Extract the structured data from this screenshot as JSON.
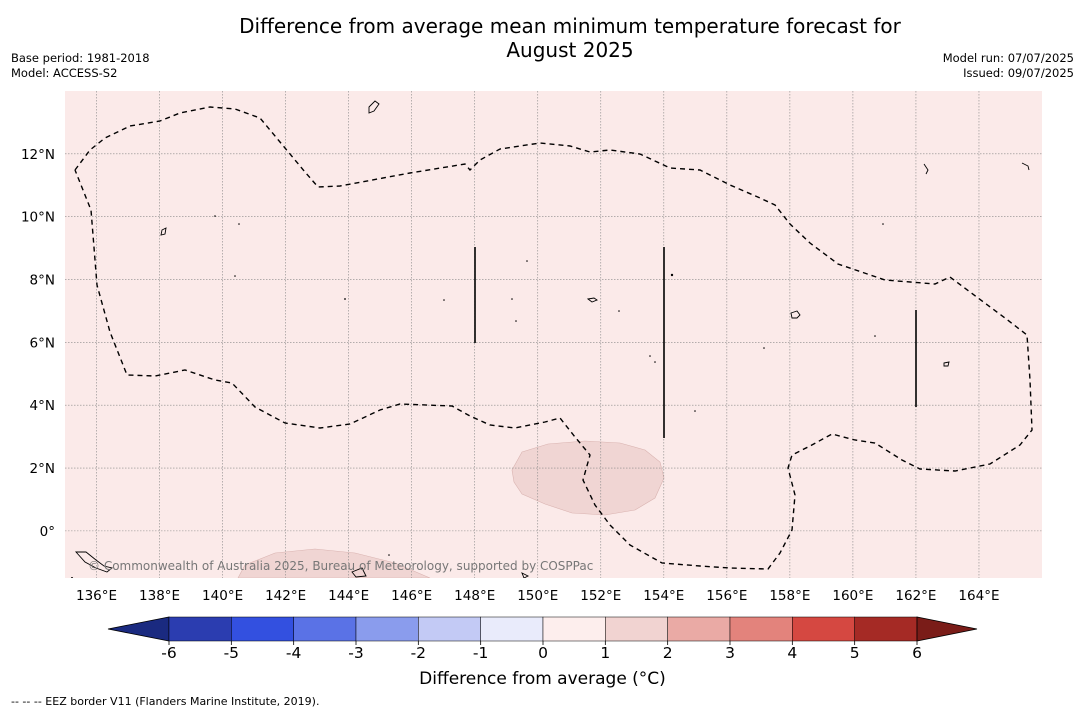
{
  "header": {
    "title_line1": "Difference from average mean minimum temperature forecast for",
    "title_line2": "August 2025",
    "base_period": "Base period: 1981-2018",
    "model": "Model: ACCESS-S2",
    "model_run": "Model run: 07/07/2025",
    "issued": "Issued: 09/07/2025"
  },
  "map": {
    "background_color": "#fbeae9",
    "anomaly_patch_color": "#f0d5d3",
    "grid": true,
    "lon_labels": [
      "136°E",
      "138°E",
      "140°E",
      "142°E",
      "144°E",
      "146°E",
      "148°E",
      "150°E",
      "152°E",
      "154°E",
      "156°E",
      "158°E",
      "160°E",
      "162°E",
      "164°E"
    ],
    "lat_labels": [
      "12°N",
      "10°N",
      "8°N",
      "6°N",
      "4°N",
      "2°N",
      "0°"
    ],
    "lon_range": [
      135.0,
      166.0
    ],
    "lat_range": [
      -1.5,
      14.0
    ],
    "copyright": "© Commonwealth of Australia 2025, Bureau of Meteorology, supported by COSPPac"
  },
  "colorbar": {
    "tick_labels": [
      "-6",
      "-5",
      "-4",
      "-3",
      "-2",
      "-1",
      "0",
      "1",
      "2",
      "3",
      "4",
      "5",
      "6"
    ],
    "colors": [
      "#1a2a80",
      "#2b3db0",
      "#3350e0",
      "#5a72e6",
      "#8a9ced",
      "#c3caf5",
      "#e9ebfb",
      "#fdeeed",
      "#f1d3d1",
      "#eaaaa5",
      "#e3837c",
      "#d54841",
      "#a52a25",
      "#7a1c18"
    ],
    "label": "Difference from average (°C)"
  },
  "footer": {
    "legend_text": "-- -- -- EEZ border V11 (Flanders Marine Institute, 2019)."
  }
}
